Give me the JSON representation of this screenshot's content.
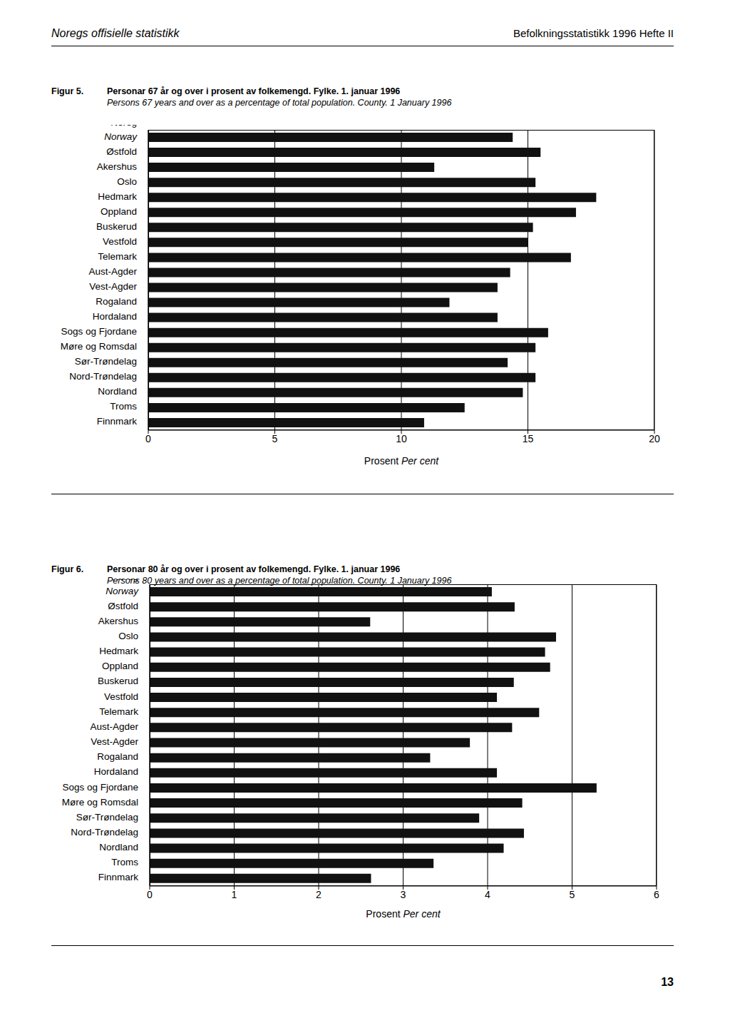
{
  "header": {
    "left": "Noregs offisielle statistikk",
    "right": "Befolkningsstatistikk 1996 Hefte II"
  },
  "page_number": "13",
  "chart_data": [
    {
      "type": "bar",
      "figure": "Figur 5.",
      "title": "Personar 67 år og over i prosent av folkemengd. Fylke. 1. januar 1996",
      "subtitle": "Persons 67 years and over as a percentage of total population. County. 1 January 1996",
      "xlabel": "Prosent",
      "xlabel_en": "Per cent",
      "orientation": "horizontal",
      "categories": [
        "Noreg\nNorway",
        "Østfold",
        "Akershus",
        "Oslo",
        "Hedmark",
        "Oppland",
        "Buskerud",
        "Vestfold",
        "Telemark",
        "Aust-Agder",
        "Vest-Agder",
        "Rogaland",
        "Hordaland",
        "Sogs og Fjordane",
        "Møre og Romsdal",
        "Sør-Trøndelag",
        "Nord-Trøndelag",
        "Nordland",
        "Troms",
        "Finnmark"
      ],
      "values": [
        14.4,
        15.5,
        11.3,
        15.3,
        17.7,
        16.9,
        15.2,
        15.0,
        16.7,
        14.3,
        13.8,
        11.9,
        13.8,
        15.8,
        15.3,
        14.2,
        15.3,
        14.8,
        12.5,
        10.9
      ],
      "color": "#111111",
      "xlim": [
        0,
        20
      ],
      "xticks": [
        0,
        5,
        10,
        15,
        20
      ],
      "grid": true
    },
    {
      "type": "bar",
      "figure": "Figur 6.",
      "title": "Personar 80 år og over i prosent av folkemengd. Fylke. 1. januar 1996",
      "subtitle": "Persons 80 years and over as a percentage of total population. County. 1 January 1996",
      "xlabel": "Prosent",
      "xlabel_en": "Per cent",
      "orientation": "horizontal",
      "categories": [
        "Noreg\nNorway",
        "Østfold",
        "Akershus",
        "Oslo",
        "Hedmark",
        "Oppland",
        "Buskerud",
        "Vestfold",
        "Telemark",
        "Aust-Agder",
        "Vest-Agder",
        "Rogaland",
        "Hordaland",
        "Sogs og Fjordane",
        "Møre og Romsdal",
        "Sør-Trøndelag",
        "Nord-Trøndelag",
        "Nordland",
        "Troms",
        "Finnmark"
      ],
      "values": [
        4.05,
        4.32,
        2.61,
        4.81,
        4.68,
        4.74,
        4.31,
        4.11,
        4.61,
        4.29,
        3.79,
        3.32,
        4.11,
        5.29,
        4.41,
        3.9,
        4.43,
        4.19,
        3.36,
        2.62
      ],
      "color": "#111111",
      "xlim": [
        0,
        6
      ],
      "xticks": [
        0,
        1,
        2,
        3,
        4,
        5,
        6
      ],
      "grid": true
    }
  ]
}
